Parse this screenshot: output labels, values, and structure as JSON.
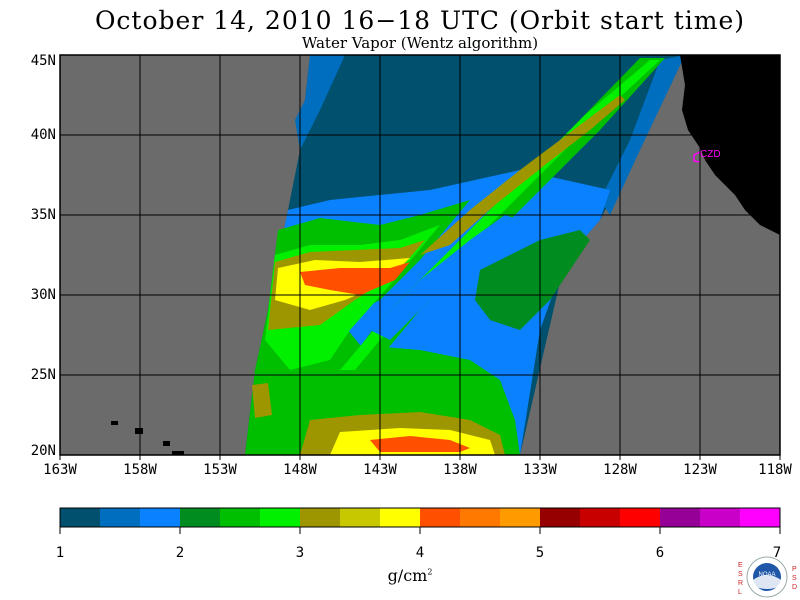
{
  "title": "October 14, 2010  16−18 UTC  (Orbit start time)",
  "subtitle": "Water Vapor (Wentz algorithm)",
  "map": {
    "latitude_labels": [
      "45N",
      "40N",
      "35N",
      "30N",
      "25N",
      "20N"
    ],
    "longitude_labels": [
      "163W",
      "158W",
      "153W",
      "148W",
      "143W",
      "138W",
      "133W",
      "128W",
      "123W",
      "118W"
    ],
    "station_marker": {
      "label": "CZD",
      "color": "#ff00ff"
    },
    "colors": {
      "no_data": "#6b6b6b",
      "land": "#000000",
      "grid": "#000000"
    }
  },
  "colorbar": {
    "tick_labels": [
      "1",
      "2",
      "3",
      "4",
      "5",
      "6",
      "7"
    ],
    "colors": [
      "#00506e",
      "#006ebe",
      "#0a82ff",
      "#008c1e",
      "#00be00",
      "#00f000",
      "#9e9600",
      "#c8c800",
      "#ffff00",
      "#ff5000",
      "#ff7800",
      "#ff9b00",
      "#960000",
      "#c80000",
      "#ff0000",
      "#960096",
      "#c800c8",
      "#ff00ff"
    ],
    "units": "g/cm",
    "units_superscript": "2"
  },
  "logo": {
    "left_letters": [
      "E",
      "S",
      "R",
      "L"
    ],
    "right_letters": [
      "P",
      "S",
      "D"
    ],
    "badge_text": "NOAA"
  }
}
